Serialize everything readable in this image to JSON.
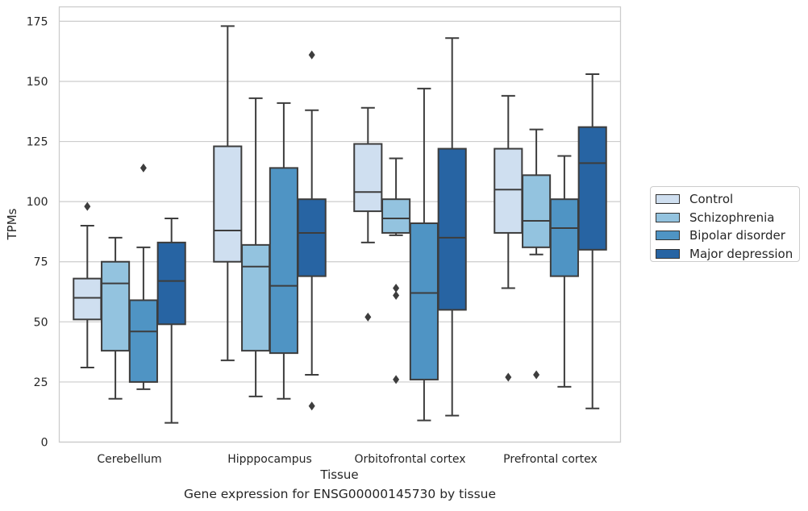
{
  "chart_data": {
    "type": "box",
    "title": "",
    "xlabel": "Tissue",
    "ylabel": "TPMs",
    "caption": "Gene expression for ENSG00000145730 by tissue",
    "ylim": [
      0,
      181
    ],
    "yticks": [
      0,
      25,
      50,
      75,
      100,
      125,
      150,
      175
    ],
    "grid": "horizontal",
    "legend_position": "right",
    "categories": [
      "Cerebellum",
      "Hipppocampus",
      "Orbitofrontal cortex",
      "Prefrontal cortex"
    ],
    "series": [
      {
        "name": "Control",
        "color": "#cfdff0",
        "boxes": [
          {
            "whislo": 31,
            "q1": 51,
            "med": 60,
            "q3": 68,
            "whishi": 90,
            "fliers": [
              98
            ]
          },
          {
            "whislo": 34,
            "q1": 75,
            "med": 88,
            "q3": 123,
            "whishi": 173,
            "fliers": []
          },
          {
            "whislo": 83,
            "q1": 96,
            "med": 104,
            "q3": 124,
            "whishi": 139,
            "fliers": [
              52
            ]
          },
          {
            "whislo": 64,
            "q1": 87,
            "med": 105,
            "q3": 122,
            "whishi": 144,
            "fliers": [
              27
            ]
          }
        ]
      },
      {
        "name": "Schizophrenia",
        "color": "#93c3df",
        "boxes": [
          {
            "whislo": 18,
            "q1": 38,
            "med": 66,
            "q3": 75,
            "whishi": 85,
            "fliers": []
          },
          {
            "whislo": 19,
            "q1": 38,
            "med": 73,
            "q3": 82,
            "whishi": 143,
            "fliers": []
          },
          {
            "whislo": 86,
            "q1": 87,
            "med": 93,
            "q3": 101,
            "whishi": 118,
            "fliers": [
              64,
              61,
              26
            ]
          },
          {
            "whislo": 78,
            "q1": 81,
            "med": 92,
            "q3": 111,
            "whishi": 130,
            "fliers": [
              28
            ]
          }
        ]
      },
      {
        "name": "Bipolar disorder",
        "color": "#4f94c4",
        "boxes": [
          {
            "whislo": 22,
            "q1": 25,
            "med": 46,
            "q3": 59,
            "whishi": 81,
            "fliers": [
              114
            ]
          },
          {
            "whislo": 18,
            "q1": 37,
            "med": 65,
            "q3": 114,
            "whishi": 141,
            "fliers": []
          },
          {
            "whislo": 9,
            "q1": 26,
            "med": 62,
            "q3": 91,
            "whishi": 147,
            "fliers": []
          },
          {
            "whislo": 23,
            "q1": 69,
            "med": 89,
            "q3": 101,
            "whishi": 119,
            "fliers": []
          }
        ]
      },
      {
        "name": "Major depression",
        "color": "#2764a3",
        "boxes": [
          {
            "whislo": 8,
            "q1": 49,
            "med": 67,
            "q3": 83,
            "whishi": 93,
            "fliers": []
          },
          {
            "whislo": 28,
            "q1": 69,
            "med": 87,
            "q3": 101,
            "whishi": 138,
            "fliers": [
              161,
              15
            ]
          },
          {
            "whislo": 11,
            "q1": 55,
            "med": 85,
            "q3": 122,
            "whishi": 168,
            "fliers": []
          },
          {
            "whislo": 14,
            "q1": 80,
            "med": 116,
            "q3": 131,
            "whishi": 153,
            "fliers": []
          }
        ]
      }
    ]
  }
}
